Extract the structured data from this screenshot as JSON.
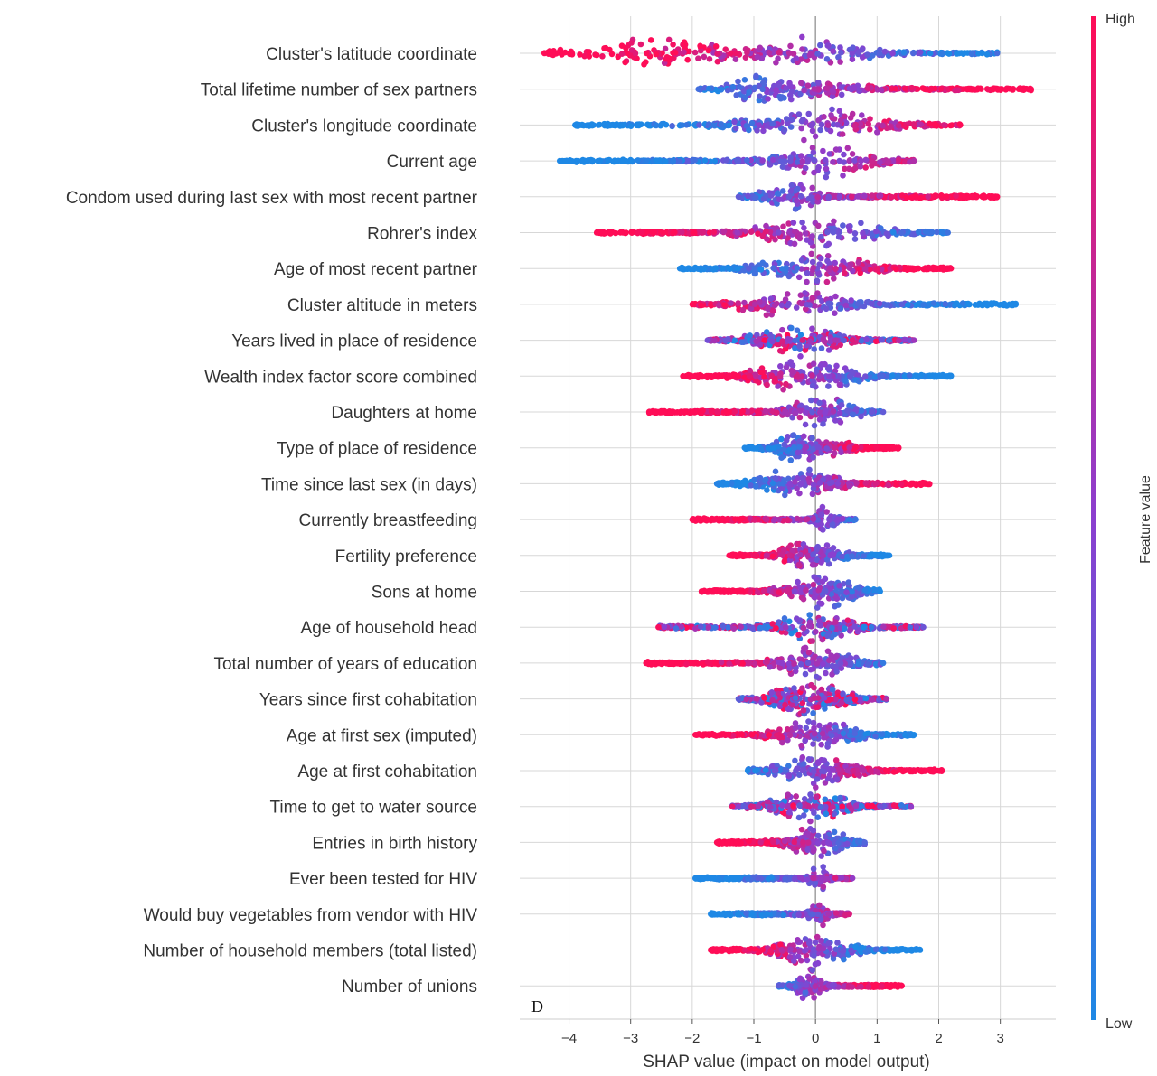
{
  "chart_data": {
    "type": "scatter",
    "subtype": "shap-beeswarm",
    "panel_label": "D",
    "xlabel": "SHAP value (impact on model output)",
    "xlim": [
      -4.8,
      3.9
    ],
    "xticks": [
      -4,
      -3,
      -2,
      -1,
      0,
      1,
      2,
      3
    ],
    "grid": true,
    "colorbar": {
      "label": "Feature value",
      "high": "High",
      "low": "Low",
      "high_color": "#ff0d57",
      "low_color": "#1e88e5",
      "mid_color": "#8b3fcf"
    },
    "missing_color": "#777777",
    "features": [
      {
        "name": "Cluster's latitude coordinate",
        "min": -4.4,
        "max": 2.95,
        "peaks": [
          {
            "x": -2.6,
            "w": 0.9,
            "a": 0.85
          },
          {
            "x": 0.0,
            "w": 0.6,
            "a": 1.0
          }
        ],
        "color": "high-left"
      },
      {
        "name": "Total lifetime number of sex partners",
        "min": -1.9,
        "max": 3.5,
        "peaks": [
          {
            "x": -0.85,
            "w": 0.35,
            "a": 1.0
          },
          {
            "x": 0.2,
            "w": 0.5,
            "a": 0.55
          }
        ],
        "color": "high-right"
      },
      {
        "name": "Cluster's longitude coordinate",
        "min": -3.9,
        "max": 2.35,
        "peaks": [
          {
            "x": 0.0,
            "w": 0.8,
            "a": 1.0
          }
        ],
        "color": "low-left"
      },
      {
        "name": "Current age",
        "min": -4.15,
        "max": 1.6,
        "peaks": [
          {
            "x": 0.1,
            "w": 0.6,
            "a": 1.0
          }
        ],
        "color": "low-left"
      },
      {
        "name": "Condom used during last sex with most recent partner",
        "min": -1.25,
        "max": 2.95,
        "peaks": [
          {
            "x": -0.4,
            "w": 0.3,
            "a": 1.0
          }
        ],
        "color": "high-right"
      },
      {
        "name": "Rohrer's index",
        "min": -3.55,
        "max": 2.15,
        "peaks": [
          {
            "x": 0.0,
            "w": 0.7,
            "a": 1.0
          }
        ],
        "color": "high-left"
      },
      {
        "name": "Age of most recent partner",
        "min": -2.2,
        "max": 2.2,
        "peaks": [
          {
            "x": 0.0,
            "w": 0.6,
            "a": 1.0
          }
        ],
        "color": "high-right"
      },
      {
        "name": "Cluster altitude in meters",
        "min": -2.0,
        "max": 3.25,
        "peaks": [
          {
            "x": -0.3,
            "w": 0.6,
            "a": 1.0
          }
        ],
        "color": "high-left"
      },
      {
        "name": "Years lived in place of residence",
        "min": -1.75,
        "max": 1.6,
        "peaks": [
          {
            "x": -0.25,
            "w": 0.5,
            "a": 1.0
          }
        ],
        "color": "mixed"
      },
      {
        "name": "Wealth index factor score combined",
        "min": -2.15,
        "max": 2.2,
        "peaks": [
          {
            "x": -0.2,
            "w": 0.6,
            "a": 1.0
          }
        ],
        "color": "high-left"
      },
      {
        "name": "Daughters at home",
        "min": -2.7,
        "max": 1.1,
        "peaks": [
          {
            "x": 0.1,
            "w": 0.4,
            "a": 1.0
          }
        ],
        "color": "high-left"
      },
      {
        "name": "Type of place of residence",
        "min": -1.15,
        "max": 1.35,
        "peaks": [
          {
            "x": -0.3,
            "w": 0.25,
            "a": 1.0
          },
          {
            "x": 0.35,
            "w": 0.25,
            "a": 0.4
          }
        ],
        "color": "high-right"
      },
      {
        "name": "Time since last sex (in days)",
        "min": -1.6,
        "max": 1.85,
        "peaks": [
          {
            "x": -0.3,
            "w": 0.45,
            "a": 1.0
          }
        ],
        "color": "high-right"
      },
      {
        "name": "Currently breastfeeding",
        "min": -2.0,
        "max": 0.65,
        "peaks": [
          {
            "x": 0.15,
            "w": 0.12,
            "a": 0.9
          }
        ],
        "color": "high-left"
      },
      {
        "name": "Fertility preference",
        "min": -1.4,
        "max": 1.2,
        "peaks": [
          {
            "x": -0.3,
            "w": 0.2,
            "a": 1.0
          },
          {
            "x": 0.25,
            "w": 0.2,
            "a": 0.6
          }
        ],
        "color": "high-left"
      },
      {
        "name": "Sons at home",
        "min": -1.85,
        "max": 1.05,
        "peaks": [
          {
            "x": 0.1,
            "w": 0.4,
            "a": 1.0
          }
        ],
        "color": "high-left"
      },
      {
        "name": "Age of household head",
        "min": -2.55,
        "max": 1.75,
        "peaks": [
          {
            "x": 0.0,
            "w": 0.45,
            "a": 1.0
          }
        ],
        "color": "mixed"
      },
      {
        "name": "Total number of years of education",
        "min": -2.75,
        "max": 1.1,
        "peaks": [
          {
            "x": 0.0,
            "w": 0.45,
            "a": 1.0
          }
        ],
        "color": "high-left"
      },
      {
        "name": "Years since first cohabitation",
        "min": -1.25,
        "max": 1.15,
        "peaks": [
          {
            "x": -0.1,
            "w": 0.45,
            "a": 1.0
          }
        ],
        "color": "mixed"
      },
      {
        "name": "Age at first sex (imputed)",
        "min": -1.95,
        "max": 1.6,
        "peaks": [
          {
            "x": 0.0,
            "w": 0.45,
            "a": 1.0
          }
        ],
        "color": "high-left"
      },
      {
        "name": "Age at first cohabitation",
        "min": -1.1,
        "max": 2.05,
        "peaks": [
          {
            "x": 0.0,
            "w": 0.45,
            "a": 1.0
          }
        ],
        "color": "high-right"
      },
      {
        "name": "Time to get to water source",
        "min": -1.35,
        "max": 1.55,
        "peaks": [
          {
            "x": -0.1,
            "w": 0.45,
            "a": 1.0
          }
        ],
        "color": "mixed"
      },
      {
        "name": "Entries in birth history",
        "min": -1.6,
        "max": 0.8,
        "peaks": [
          {
            "x": 0.0,
            "w": 0.35,
            "a": 1.0
          }
        ],
        "color": "high-left"
      },
      {
        "name": "Ever been tested for HIV",
        "min": -1.95,
        "max": 0.6,
        "peaks": [
          {
            "x": 0.05,
            "w": 0.1,
            "a": 0.9
          }
        ],
        "color": "low-left"
      },
      {
        "name": "Would buy vegetables from vendor with HIV",
        "min": -1.7,
        "max": 0.55,
        "peaks": [
          {
            "x": 0.05,
            "w": 0.1,
            "a": 0.9
          }
        ],
        "color": "low-left"
      },
      {
        "name": "Number of household members (total listed)",
        "min": -1.7,
        "max": 1.7,
        "peaks": [
          {
            "x": 0.0,
            "w": 0.45,
            "a": 1.0
          }
        ],
        "color": "high-left"
      },
      {
        "name": "Number of unions",
        "min": -0.6,
        "max": 1.4,
        "peaks": [
          {
            "x": -0.1,
            "w": 0.15,
            "a": 1.0
          }
        ],
        "color": "high-right"
      }
    ]
  }
}
